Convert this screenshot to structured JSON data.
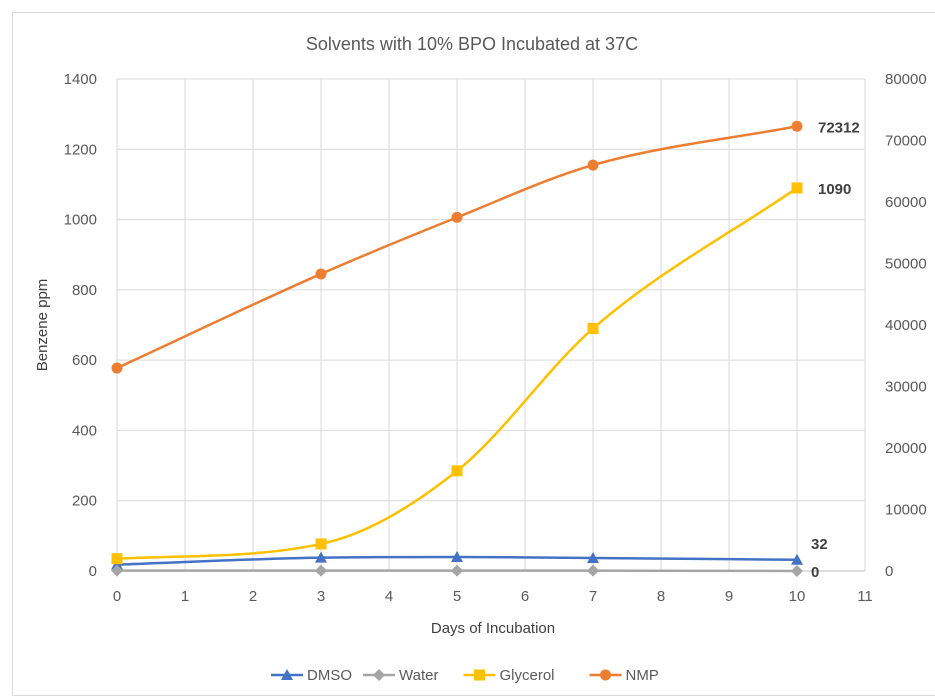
{
  "chart_data": {
    "type": "line",
    "title": "Solvents with 10% BPO Incubated at 37C",
    "xlabel": "Days of Incubation",
    "ylabel": "Benzene ppm",
    "y2label": "",
    "xlim": [
      0,
      11
    ],
    "ylim": [
      0,
      1400
    ],
    "y2lim": [
      0,
      80000
    ],
    "x_ticks": [
      0,
      1,
      2,
      3,
      4,
      5,
      6,
      7,
      8,
      9,
      10,
      11
    ],
    "y_ticks": [
      0,
      200,
      400,
      600,
      800,
      1000,
      1200,
      1400
    ],
    "y2_ticks": [
      0,
      10000,
      20000,
      30000,
      40000,
      50000,
      60000,
      70000,
      80000
    ],
    "grid": true,
    "legend_position": "bottom",
    "series": [
      {
        "name": "DMSO",
        "axis": "left",
        "color": "#4472c4",
        "marker": "triangle",
        "x": [
          0,
          3,
          5,
          7,
          10
        ],
        "y": [
          18,
          38,
          40,
          37,
          32
        ]
      },
      {
        "name": "Water",
        "axis": "left",
        "color": "#a5a5a5",
        "marker": "diamond",
        "x": [
          0,
          3,
          5,
          7,
          10
        ],
        "y": [
          1,
          1,
          1,
          1,
          0
        ]
      },
      {
        "name": "Glycerol",
        "axis": "left",
        "color": "#ffc000",
        "marker": "square",
        "x": [
          0,
          3,
          5,
          7,
          10
        ],
        "y": [
          35,
          77,
          285,
          690,
          1090
        ]
      },
      {
        "name": "NMP",
        "axis": "right",
        "color": "#ed7d31",
        "marker": "circle",
        "x": [
          0,
          3,
          5,
          7,
          10
        ],
        "y": [
          33000,
          48300,
          57500,
          66000,
          72312
        ]
      }
    ],
    "annotations": [
      {
        "series": "NMP",
        "text": "72312"
      },
      {
        "series": "Glycerol",
        "text": "1090"
      },
      {
        "series": "DMSO",
        "text": "32"
      },
      {
        "series": "Water",
        "text": "0"
      }
    ]
  }
}
